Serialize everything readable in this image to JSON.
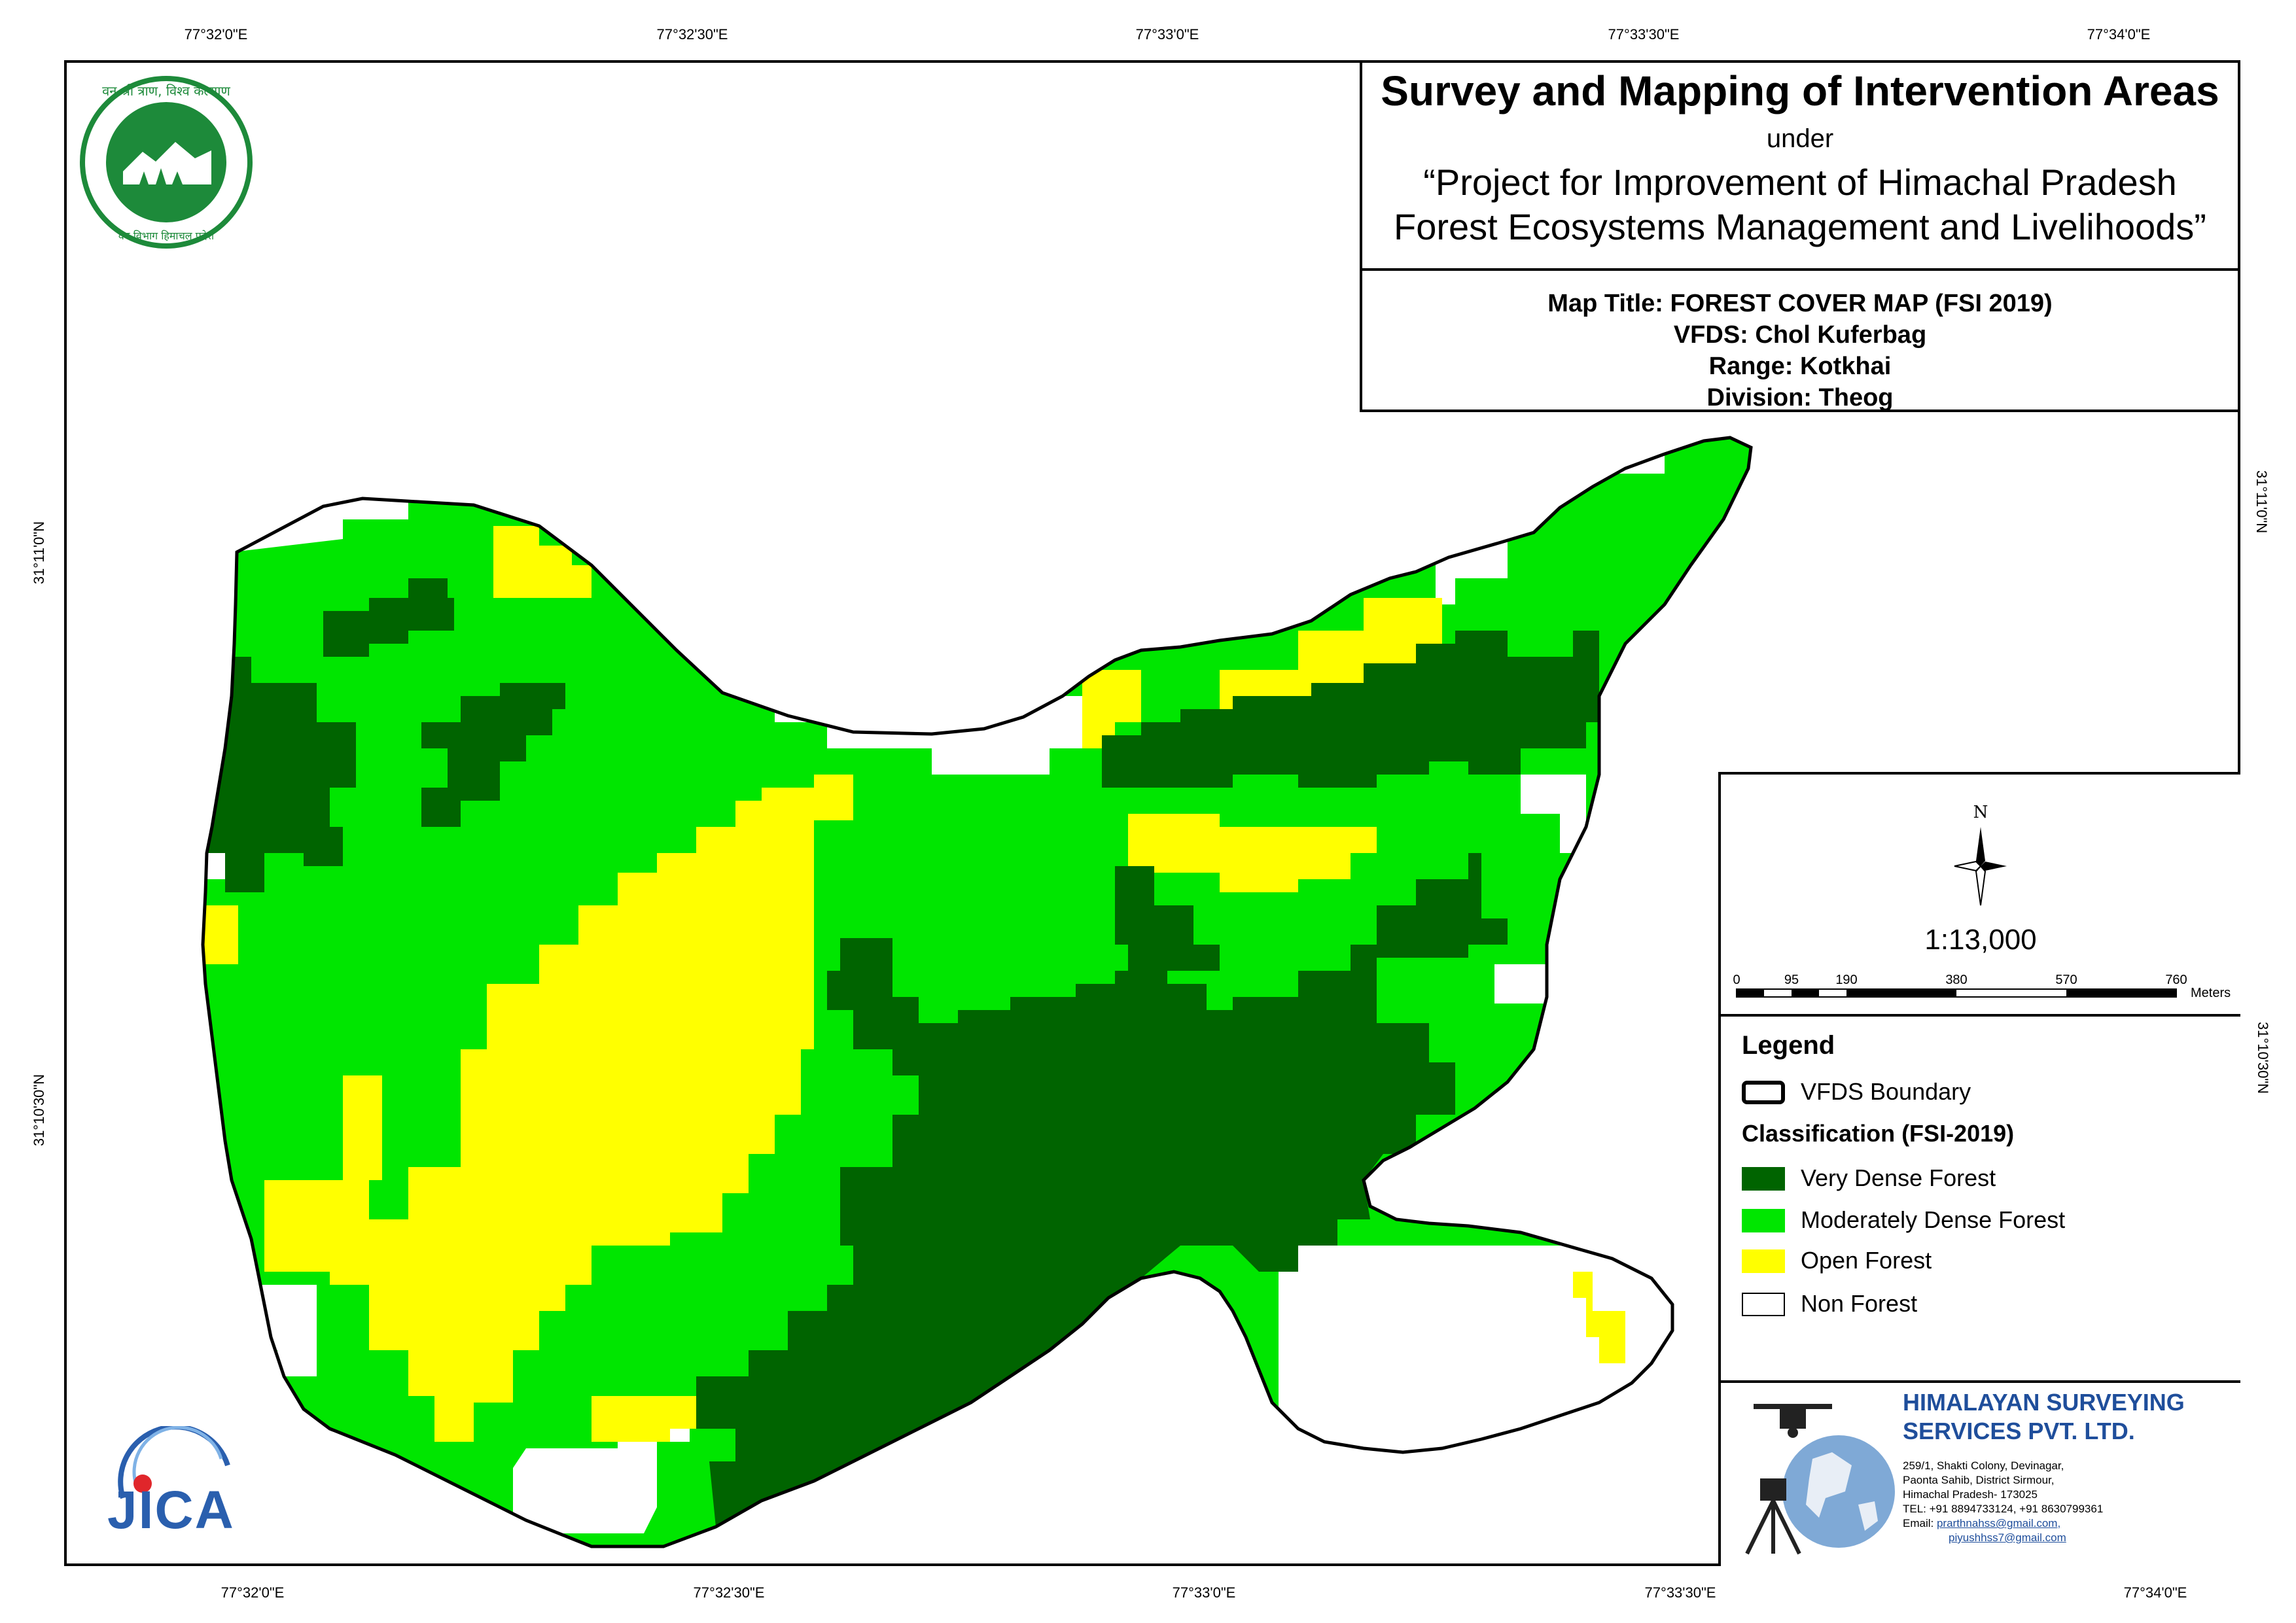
{
  "title": {
    "main": "Survey and Mapping of Intervention Areas",
    "under": "under",
    "project_line1": "“Project for Improvement of Himachal Pradesh",
    "project_line2": "Forest Ecosystems Management and Livelihoods”"
  },
  "info": {
    "map_title": "Map Title: FOREST COVER MAP (FSI 2019)",
    "vfds": "VFDS: Chol Kuferbag",
    "range": "Range: Kotkhai",
    "division": "Division: Theog"
  },
  "graticule": {
    "top": [
      "77°32'0\"E",
      "77°32'30\"E",
      "77°33'0\"E",
      "77°33'30\"E",
      "77°34'0\"E"
    ],
    "bottom": [
      "77°32'0\"E",
      "77°32'30\"E",
      "77°33'0\"E",
      "77°33'30\"E",
      "77°34'0\"E"
    ],
    "left": [
      "31°11'0\"N",
      "31°10'30\"N"
    ],
    "right": [
      "31°11'0\"N",
      "31°10'30\"N"
    ]
  },
  "north_arrow": {
    "label": "N"
  },
  "scale": {
    "ratio": "1:13,000",
    "ticks": [
      "0",
      "95",
      "190",
      "380",
      "570",
      "760"
    ],
    "unit": "Meters"
  },
  "legend": {
    "title": "Legend",
    "boundary_label": "VFDS Boundary",
    "classification_title": "Classification (FSI-2019)",
    "items": [
      {
        "label": "Very Dense Forest",
        "color": "#006400"
      },
      {
        "label": "Moderately Dense Forest",
        "color": "#00E600"
      },
      {
        "label": "Open Forest",
        "color": "#FFFF00"
      },
      {
        "label": "Non Forest",
        "color": "#FFFFFF"
      }
    ]
  },
  "company": {
    "name_line1": "HIMALAYAN SURVEYING",
    "name_line2": "SERVICES PVT. LTD.",
    "address_line1": "259/1, Shakti Colony, Devinagar,",
    "address_line2": "Paonta Sahib, District Sirmour,",
    "address_line3": "Himachal Pradesh- 173025",
    "tel": "TEL: +91 8894733124, +91 8630799361",
    "email_label": "Email:",
    "email1": "prarthnahss@gmail.com,",
    "email2": "piyushhss7@gmail.com"
  },
  "logos": {
    "forest_dept_text": "वन विभाग हिमाचल प्रदेश",
    "forest_motto": "वन श्री त्राण, विश्व कल्याण",
    "jica": "JICA"
  }
}
